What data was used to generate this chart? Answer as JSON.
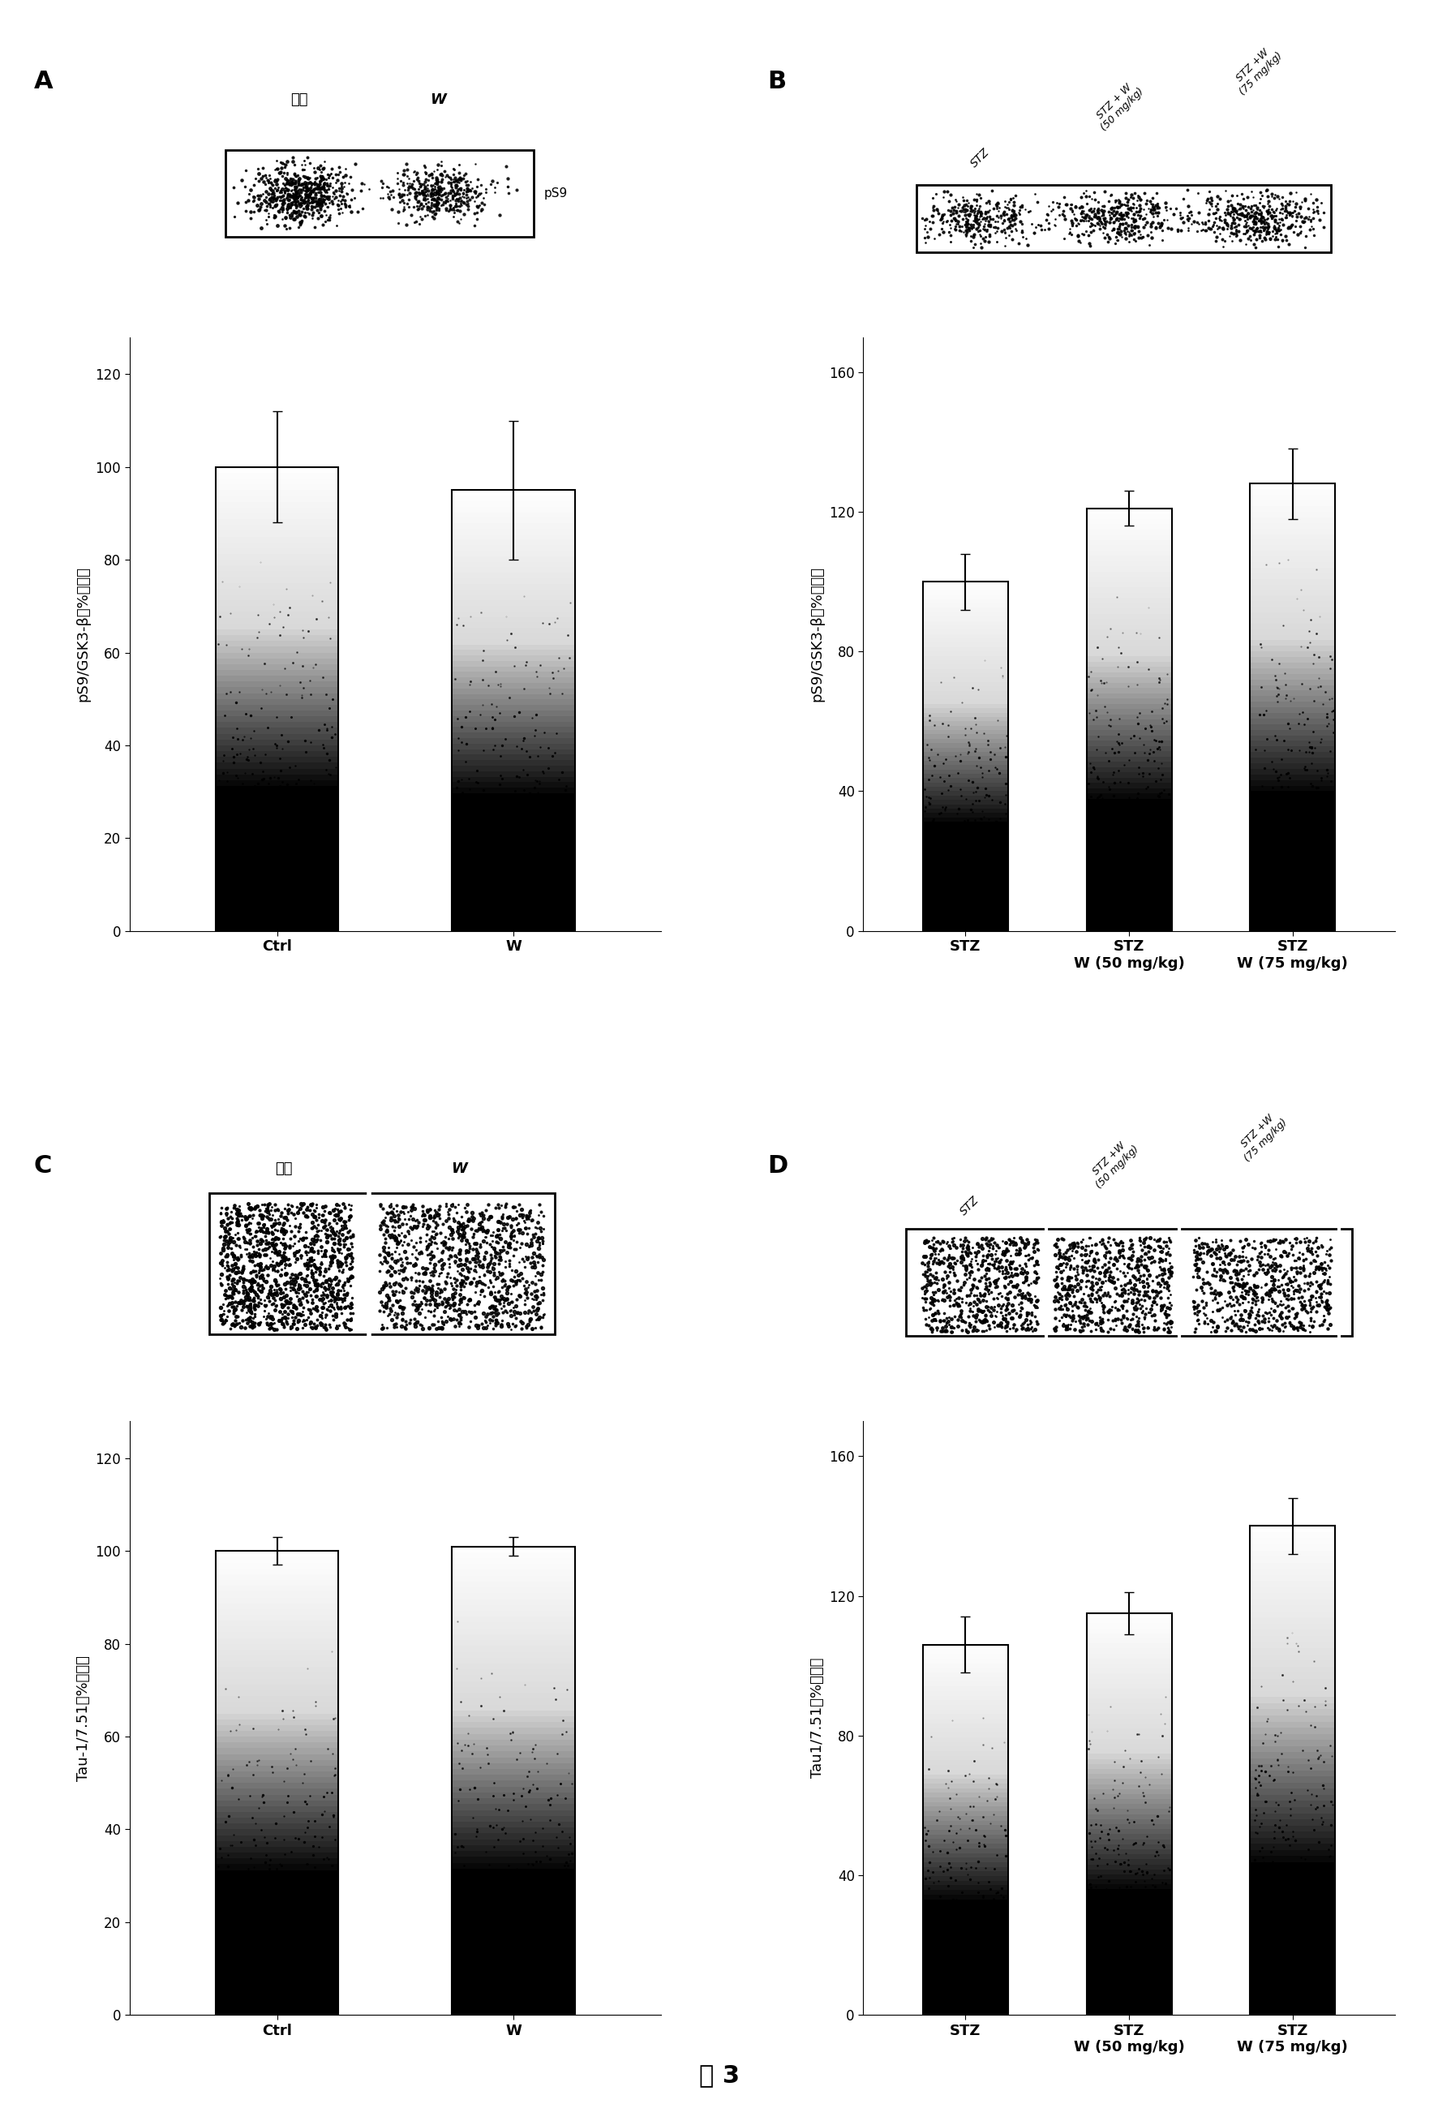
{
  "panel_A": {
    "categories": [
      "Ctrl",
      "W"
    ],
    "values": [
      100,
      95
    ],
    "errors": [
      12,
      15
    ],
    "ylabel": "pS9/GSK3-β（%对照）",
    "yticks": [
      0,
      20,
      40,
      60,
      80,
      100,
      120
    ],
    "ylim": [
      0,
      128
    ],
    "label": "A"
  },
  "panel_B": {
    "categories": [
      "STZ",
      "STZ\nW (50 mg/kg)",
      "STZ\nW (75 mg/kg)"
    ],
    "values": [
      100,
      121,
      128
    ],
    "errors": [
      8,
      5,
      10
    ],
    "ylabel": "pS9/GSK3-β（%对照）",
    "yticks": [
      0,
      40,
      80,
      120,
      160
    ],
    "ylim": [
      0,
      170
    ],
    "label": "B"
  },
  "panel_C": {
    "categories": [
      "Ctrl",
      "W"
    ],
    "values": [
      100,
      101
    ],
    "errors": [
      3,
      2
    ],
    "ylabel": "Tau-1/7.51（%对照）",
    "yticks": [
      0,
      20,
      40,
      60,
      80,
      100,
      120
    ],
    "ylim": [
      0,
      128
    ],
    "label": "C"
  },
  "panel_D": {
    "categories": [
      "STZ",
      "STZ\nW (50 mg/kg)",
      "STZ\nW (75 mg/kg)"
    ],
    "values": [
      106,
      115,
      140
    ],
    "errors": [
      8,
      6,
      8
    ],
    "ylabel": "Tau1/7.51（%对照）",
    "yticks": [
      0,
      40,
      80,
      120,
      160
    ],
    "ylim": [
      0,
      170
    ],
    "label": "D"
  },
  "background_color": "#ffffff",
  "figure_label_fontsize": 22,
  "axis_label_fontsize": 13,
  "tick_fontsize": 12,
  "xlabel_fontsize": 13,
  "bottom_label": "图 3"
}
